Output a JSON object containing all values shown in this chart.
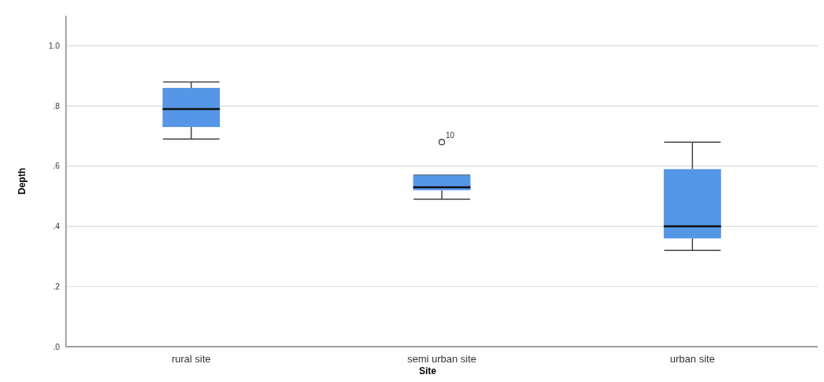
{
  "chart_data": {
    "type": "box",
    "xlabel": "Site",
    "ylabel": "Depth",
    "categories": [
      "rural site",
      "semi urban site",
      "urban site"
    ],
    "boxes": [
      {
        "low": 0.69,
        "q1": 0.73,
        "median": 0.79,
        "q3": 0.86,
        "high": 0.88
      },
      {
        "low": 0.49,
        "q1": 0.52,
        "median": 0.53,
        "q3": 0.57,
        "high": 0.57,
        "outliers": [
          0.68
        ]
      },
      {
        "low": 0.32,
        "q1": 0.36,
        "median": 0.4,
        "q3": 0.59,
        "high": 0.68
      }
    ],
    "color": "#5596e6",
    "ylim": [
      0,
      1.1
    ],
    "yticks": [
      {
        "value": 0,
        "label": ".0"
      },
      {
        "value": 0.2,
        "label": ".2"
      },
      {
        "value": 0.4,
        "label": ".4"
      },
      {
        "value": 0.6,
        "label": ".6"
      },
      {
        "value": 0.8,
        "label": ".8"
      },
      {
        "value": 1,
        "label": "1.0"
      }
    ],
    "grid": "y",
    "annotations": [
      "10"
    ]
  }
}
